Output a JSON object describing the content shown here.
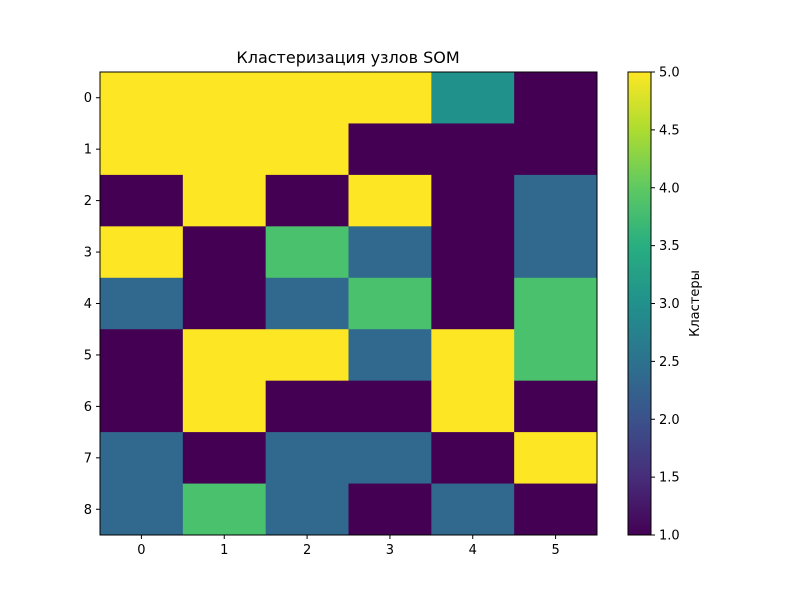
{
  "chart_data": {
    "type": "heatmap",
    "title": "Кластеризация узлов SOM",
    "x_ticks": [
      "0",
      "1",
      "2",
      "3",
      "4",
      "5"
    ],
    "y_ticks": [
      "0",
      "1",
      "2",
      "3",
      "4",
      "5",
      "6",
      "7",
      "8"
    ],
    "values": [
      [
        5,
        5,
        5,
        5,
        3,
        1
      ],
      [
        5,
        5,
        5,
        1,
        1,
        1
      ],
      [
        1,
        5,
        1,
        5,
        1,
        2
      ],
      [
        5,
        1,
        4,
        2,
        1,
        2
      ],
      [
        2,
        1,
        2,
        4,
        1,
        4
      ],
      [
        1,
        5,
        5,
        2,
        5,
        4
      ],
      [
        1,
        5,
        1,
        1,
        5,
        1
      ],
      [
        2,
        1,
        2,
        2,
        1,
        5
      ],
      [
        2,
        4,
        2,
        1,
        2,
        1
      ]
    ],
    "colormap": "viridis",
    "color_range": [
      1.0,
      5.0
    ],
    "colorbar": {
      "label": "Кластеры",
      "ticks": [
        "1.0",
        "1.5",
        "2.0",
        "2.5",
        "3.0",
        "3.5",
        "4.0",
        "4.5",
        "5.0"
      ]
    },
    "colors": {
      "1": "#440154",
      "2": "#31688e",
      "3": "#21918c",
      "4": "#4ac16d",
      "5": "#fde725"
    }
  }
}
